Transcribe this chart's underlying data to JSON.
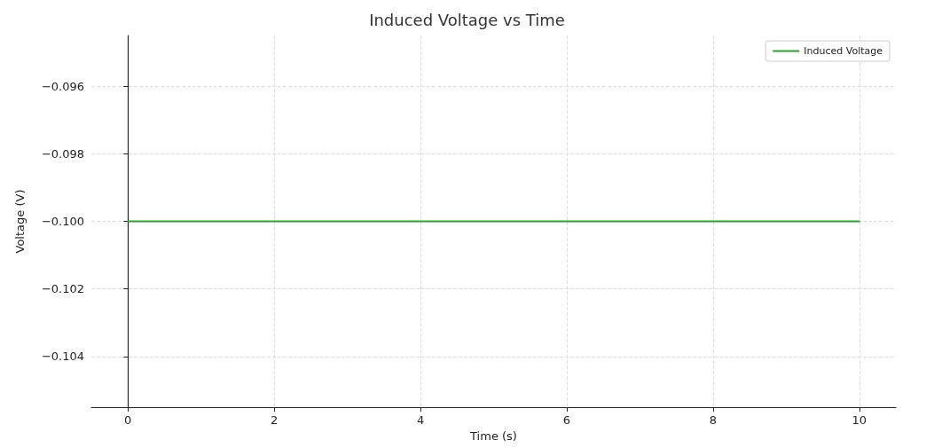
{
  "chart_data": {
    "type": "line",
    "title": "Induced Voltage vs Time",
    "xlabel": "Time (s)",
    "ylabel": "Voltage (V)",
    "x": [
      0,
      10
    ],
    "series": [
      {
        "name": "Induced Voltage",
        "color": "#2ca02c",
        "values": [
          -0.1,
          -0.1
        ]
      }
    ],
    "xlim": [
      -0.5,
      10.5
    ],
    "xticks": [
      0,
      2,
      4,
      6,
      8,
      10
    ],
    "ylim": [
      -0.1055,
      -0.0945
    ],
    "yticks": [
      {
        "value": -0.104,
        "label": "−0.104"
      },
      {
        "value": -0.102,
        "label": "−0.102"
      },
      {
        "value": -0.1,
        "label": "−0.100"
      },
      {
        "value": -0.098,
        "label": "−0.098"
      },
      {
        "value": -0.096,
        "label": "−0.096"
      }
    ],
    "grid": true,
    "legend": "top right",
    "marker": "none",
    "line_style": "solid"
  }
}
